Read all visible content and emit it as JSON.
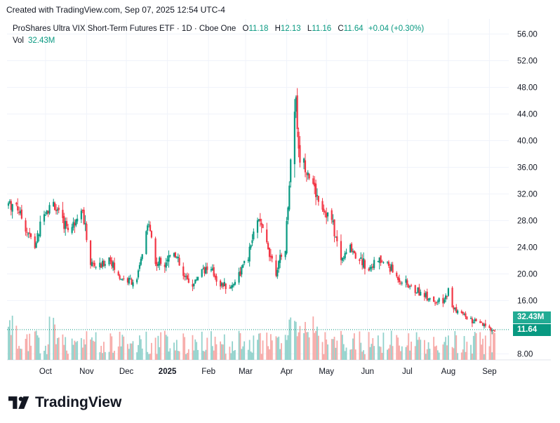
{
  "header": {
    "created_line": "Created with TradingView.com, Sep 07, 2025 12:54 UTC-4"
  },
  "legend": {
    "symbol": "ProShares Ultra VIX Short-Term Futures ETF · 1D · Cboe One",
    "o_label": "O",
    "open": "11.18",
    "h_label": "H",
    "high": "12.13",
    "l_label": "L",
    "low": "11.16",
    "c_label": "C",
    "close": "11.64",
    "change": "+0.04 (+0.30%)",
    "vol_label": "Vol",
    "vol_value": "32.43M"
  },
  "badges": {
    "volume": "32.43M",
    "price": "11.64"
  },
  "brand": {
    "name": "TradingView"
  },
  "colors": {
    "up": "#089981",
    "down": "#f23645",
    "vol_up": "#92d2cc",
    "vol_down": "#f7a9a7",
    "grid": "#f0f3fa",
    "axis_text": "#131722"
  },
  "chart_data": {
    "type": "candlestick",
    "title": "ProShares Ultra VIX Short-Term Futures ETF · 1D · Cboe One",
    "y_ticks": [
      "56.00",
      "52.00",
      "48.00",
      "44.00",
      "40.00",
      "36.00",
      "32.00",
      "28.00",
      "24.00",
      "20.00",
      "16.00",
      "8.00"
    ],
    "y_tick_values": [
      56,
      52,
      48,
      44,
      40,
      36,
      32,
      28,
      24,
      20,
      16,
      8
    ],
    "ylim": [
      7,
      58
    ],
    "x_ticks": [
      "Oct",
      "Nov",
      "Dec",
      "2025",
      "Feb",
      "Mar",
      "Apr",
      "May",
      "Jun",
      "Jul",
      "Aug",
      "Sep"
    ],
    "last_price": 11.64,
    "last_volume": "32.43M",
    "close_path": [
      {
        "date": "2024-09-09",
        "close": 30.5
      },
      {
        "date": "2024-09-16",
        "close": 27.0
      },
      {
        "date": "2024-09-23",
        "close": 24.0
      },
      {
        "date": "2024-09-30",
        "close": 29.5
      },
      {
        "date": "2024-10-07",
        "close": 30.5
      },
      {
        "date": "2024-10-14",
        "close": 27.5
      },
      {
        "date": "2024-10-21",
        "close": 27.0
      },
      {
        "date": "2024-10-28",
        "close": 30.5
      },
      {
        "date": "2024-11-04",
        "close": 21.5
      },
      {
        "date": "2024-11-11",
        "close": 21.0
      },
      {
        "date": "2024-11-18",
        "close": 22.5
      },
      {
        "date": "2024-11-25",
        "close": 19.5
      },
      {
        "date": "2024-12-02",
        "close": 19.0
      },
      {
        "date": "2024-12-09",
        "close": 19.0
      },
      {
        "date": "2024-12-18",
        "close": 28.0
      },
      {
        "date": "2024-12-23",
        "close": 21.5
      },
      {
        "date": "2024-12-30",
        "close": 22.0
      },
      {
        "date": "2025-01-06",
        "close": 23.5
      },
      {
        "date": "2025-01-13",
        "close": 19.5
      },
      {
        "date": "2025-01-21",
        "close": 18.5
      },
      {
        "date": "2025-01-27",
        "close": 21.0
      },
      {
        "date": "2025-02-03",
        "close": 20.5
      },
      {
        "date": "2025-02-10",
        "close": 18.5
      },
      {
        "date": "2025-02-18",
        "close": 18.0
      },
      {
        "date": "2025-02-24",
        "close": 20.0
      },
      {
        "date": "2025-03-03",
        "close": 22.5
      },
      {
        "date": "2025-03-10",
        "close": 28.5
      },
      {
        "date": "2025-03-17",
        "close": 24.5
      },
      {
        "date": "2025-03-24",
        "close": 20.5
      },
      {
        "date": "2025-03-31",
        "close": 24.0
      },
      {
        "date": "2025-04-04",
        "close": 37.0
      },
      {
        "date": "2025-04-08",
        "close": 47.0
      },
      {
        "date": "2025-04-10",
        "close": 38.0
      },
      {
        "date": "2025-04-16",
        "close": 36.0
      },
      {
        "date": "2025-04-21",
        "close": 33.0
      },
      {
        "date": "2025-04-28",
        "close": 30.0
      },
      {
        "date": "2025-05-05",
        "close": 28.0
      },
      {
        "date": "2025-05-12",
        "close": 22.0
      },
      {
        "date": "2025-05-19",
        "close": 24.0
      },
      {
        "date": "2025-05-27",
        "close": 22.0
      },
      {
        "date": "2025-06-02",
        "close": 21.0
      },
      {
        "date": "2025-06-09",
        "close": 22.0
      },
      {
        "date": "2025-06-16",
        "close": 21.5
      },
      {
        "date": "2025-06-23",
        "close": 19.5
      },
      {
        "date": "2025-06-30",
        "close": 18.5
      },
      {
        "date": "2025-07-07",
        "close": 17.5
      },
      {
        "date": "2025-07-14",
        "close": 17.0
      },
      {
        "date": "2025-07-21",
        "close": 16.0
      },
      {
        "date": "2025-07-28",
        "close": 15.5
      },
      {
        "date": "2025-08-01",
        "close": 17.5
      },
      {
        "date": "2025-08-04",
        "close": 15.0
      },
      {
        "date": "2025-08-11",
        "close": 14.0
      },
      {
        "date": "2025-08-18",
        "close": 13.0
      },
      {
        "date": "2025-08-25",
        "close": 12.5
      },
      {
        "date": "2025-09-02",
        "close": 11.6
      }
    ]
  }
}
